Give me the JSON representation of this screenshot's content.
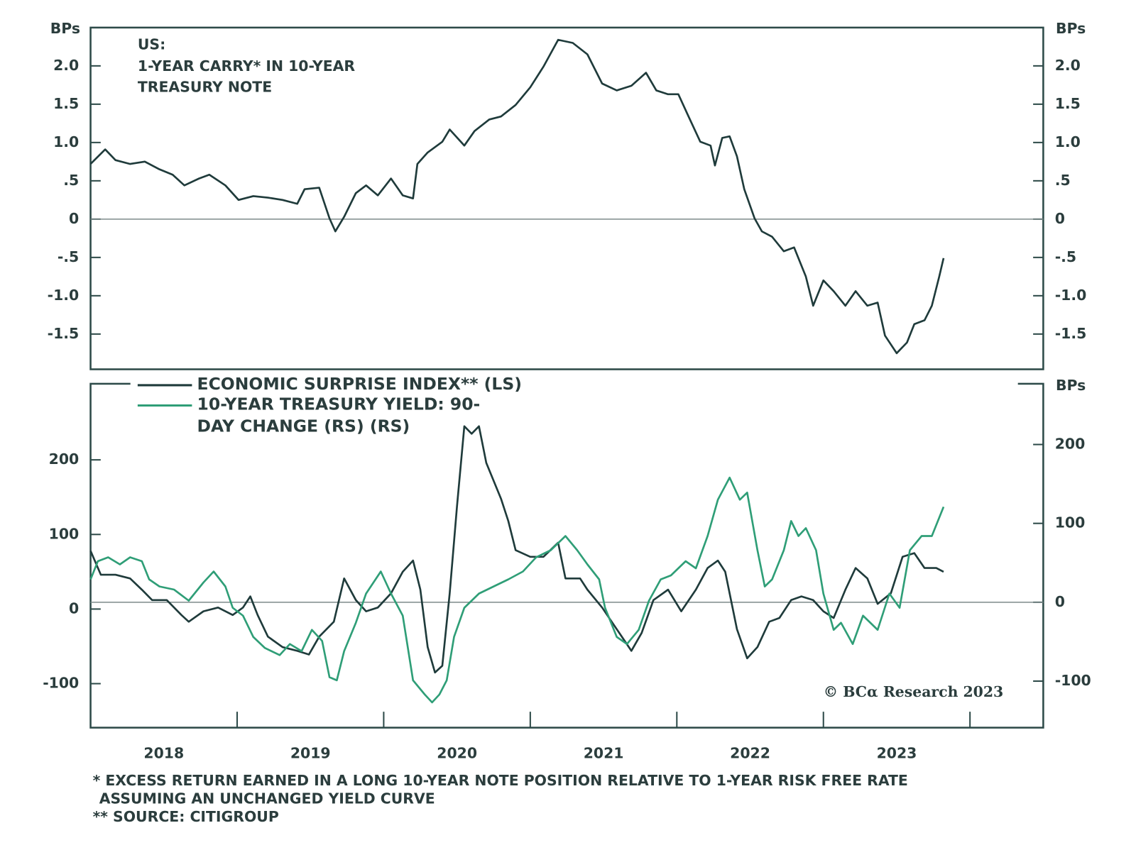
{
  "chart_data": [
    {
      "type": "line",
      "title_lines": [
        "US:",
        "1-YEAR CARRY* IN 10-YEAR",
        "TREASURY NOTE"
      ],
      "y_label": "BPs",
      "xlim": [
        2018,
        2024.5
      ],
      "ylim": [
        -1.96,
        2.5
      ],
      "yticks": [
        {
          "value": 2,
          "label": "2.0"
        },
        1.5,
        {
          "value": 1,
          "label": "1.0"
        },
        {
          "value": 0.5,
          "label": ".5"
        },
        0,
        {
          "value": -0.5,
          "label": "-.5"
        },
        {
          "value": -1,
          "label": "-1.0"
        },
        -1.5
      ],
      "mirror_ticks": true,
      "zero_line": true,
      "series": [
        {
          "color": "#1f3b3b",
          "x": [
            2018,
            2018.1,
            2018.17,
            2018.27,
            2018.37,
            2018.47,
            2018.56,
            2018.64,
            2018.74,
            2018.81,
            2018.92,
            2019.01,
            2019.11,
            2019.21,
            2019.31,
            2019.41,
            2019.46,
            2019.56,
            2019.63,
            2019.67,
            2019.73,
            2019.81,
            2019.88,
            2019.96,
            2020.05,
            2020.13,
            2020.2,
            2020.23,
            2020.3,
            2020.4,
            2020.45,
            2020.55,
            2020.62,
            2020.72,
            2020.8,
            2020.9,
            2021,
            2021.09,
            2021.19,
            2021.29,
            2021.39,
            2021.49,
            2021.59,
            2021.69,
            2021.79,
            2021.86,
            2021.94,
            2022.01,
            2022.08,
            2022.16,
            2022.23,
            2022.26,
            2022.31,
            2022.36,
            2022.41,
            2022.46,
            2022.53,
            2022.58,
            2022.65,
            2022.73,
            2022.8,
            2022.88,
            2022.93,
            2023,
            2023.07,
            2023.15,
            2023.22,
            2023.3,
            2023.37,
            2023.42,
            2023.5,
            2023.57,
            2023.62,
            2023.69,
            2023.74,
            2023.79,
            2023.82
          ],
          "values": [
            0.72,
            0.91,
            0.77,
            0.72,
            0.75,
            0.65,
            0.58,
            0.44,
            0.53,
            0.58,
            0.44,
            0.25,
            0.3,
            0.28,
            0.25,
            0.2,
            0.39,
            0.41,
            0.01,
            -0.16,
            0.03,
            0.34,
            0.44,
            0.31,
            0.53,
            0.31,
            0.27,
            0.72,
            0.87,
            1.01,
            1.17,
            0.96,
            1.15,
            1.3,
            1.34,
            1.49,
            1.72,
            1.99,
            2.34,
            2.3,
            2.15,
            1.77,
            1.68,
            1.74,
            1.91,
            1.68,
            1.63,
            1.63,
            1.34,
            1.01,
            0.96,
            0.7,
            1.06,
            1.08,
            0.82,
            0.39,
            0.01,
            -0.16,
            -0.23,
            -0.42,
            -0.37,
            -0.75,
            -1.13,
            -0.8,
            -0.94,
            -1.13,
            -0.94,
            -1.13,
            -1.09,
            -1.52,
            -1.75,
            -1.61,
            -1.37,
            -1.32,
            -1.13,
            -0.75,
            -0.51
          ]
        }
      ]
    },
    {
      "type": "line",
      "y2_label": "BPs",
      "xlim": [
        2018,
        2024.5
      ],
      "ylim": [
        -159,
        302
      ],
      "yticks": [
        200,
        100,
        0,
        -100
      ],
      "y2lim": [
        -159,
        277
      ],
      "y2ticks": [
        200,
        100,
        0,
        -100
      ],
      "zero_line": true,
      "x_tick_marks": [
        2019,
        2020,
        2021,
        2022,
        2023,
        2024
      ],
      "xticks": [
        {
          "value": 2018.5,
          "label": "2018"
        },
        {
          "value": 2019.5,
          "label": "2019"
        },
        {
          "value": 2020.5,
          "label": "2020"
        },
        {
          "value": 2021.5,
          "label": "2021"
        },
        {
          "value": 2022.5,
          "label": "2022"
        },
        {
          "value": 2023.5,
          "label": "2023"
        }
      ],
      "series": [
        {
          "name": "ECONOMIC SURPRISE INDEX** (LS)",
          "color": "#1f3b3b",
          "x": [
            2018,
            2018.07,
            2018.17,
            2018.27,
            2018.35,
            2018.42,
            2018.52,
            2018.62,
            2018.67,
            2018.77,
            2018.87,
            2018.97,
            2019.04,
            2019.09,
            2019.14,
            2019.21,
            2019.31,
            2019.41,
            2019.49,
            2019.56,
            2019.66,
            2019.73,
            2019.81,
            2019.88,
            2019.96,
            2020.05,
            2020.13,
            2020.2,
            2020.25,
            2020.3,
            2020.35,
            2020.4,
            2020.45,
            2020.5,
            2020.55,
            2020.6,
            2020.65,
            2020.7,
            2020.8,
            2020.85,
            2020.9,
            2021,
            2021.09,
            2021.19,
            2021.24,
            2021.34,
            2021.39,
            2021.49,
            2021.59,
            2021.69,
            2021.76,
            2021.84,
            2021.94,
            2022.03,
            2022.13,
            2022.21,
            2022.28,
            2022.33,
            2022.41,
            2022.48,
            2022.55,
            2022.63,
            2022.7,
            2022.78,
            2022.85,
            2022.93,
            2023,
            2023.07,
            2023.15,
            2023.22,
            2023.3,
            2023.37,
            2023.46,
            2023.54,
            2023.62,
            2023.69,
            2023.77,
            2023.82
          ],
          "values": [
            78,
            46,
            46,
            41,
            26,
            12,
            12,
            -8,
            -17,
            -3,
            2,
            -8,
            2,
            17,
            -8,
            -37,
            -51,
            -56,
            -61,
            -37,
            -17,
            41,
            12,
            -3,
            2,
            21,
            50,
            65,
            26,
            -51,
            -85,
            -76,
            21,
            138,
            245,
            235,
            245,
            196,
            148,
            118,
            79,
            70,
            70,
            89,
            41,
            41,
            26,
            2,
            -27,
            -56,
            -32,
            12,
            26,
            -3,
            26,
            55,
            65,
            50,
            -27,
            -66,
            -51,
            -17,
            -12,
            12,
            17,
            12,
            -3,
            -12,
            26,
            55,
            41,
            7,
            21,
            70,
            75,
            55,
            55,
            50
          ]
        },
        {
          "name": "10-YEAR TREASURY YIELD: 90-DAY CHANGE (RS) (RS)",
          "color": "#2f9e77",
          "axis": "y2",
          "x": [
            2018,
            2018.05,
            2018.12,
            2018.2,
            2018.27,
            2018.35,
            2018.4,
            2018.47,
            2018.57,
            2018.67,
            2018.77,
            2018.84,
            2018.92,
            2018.97,
            2019.04,
            2019.11,
            2019.19,
            2019.29,
            2019.36,
            2019.44,
            2019.51,
            2019.58,
            2019.63,
            2019.68,
            2019.73,
            2019.81,
            2019.88,
            2019.98,
            2020.05,
            2020.13,
            2020.2,
            2020.28,
            2020.33,
            2020.38,
            2020.43,
            2020.48,
            2020.55,
            2020.65,
            2020.75,
            2020.85,
            2020.95,
            2021.04,
            2021.14,
            2021.24,
            2021.32,
            2021.39,
            2021.47,
            2021.51,
            2021.59,
            2021.66,
            2021.74,
            2021.81,
            2021.89,
            2021.96,
            2022.06,
            2022.13,
            2022.21,
            2022.28,
            2022.36,
            2022.43,
            2022.48,
            2022.55,
            2022.6,
            2022.65,
            2022.73,
            2022.78,
            2022.83,
            2022.88,
            2022.95,
            2023,
            2023.07,
            2023.12,
            2023.2,
            2023.27,
            2023.37,
            2023.45,
            2023.52,
            2023.59,
            2023.67,
            2023.74,
            2023.82
          ],
          "values": [
            29,
            52,
            57,
            48,
            57,
            52,
            29,
            20,
            16,
            2,
            25,
            39,
            20,
            -7,
            -17,
            -44,
            -58,
            -67,
            -53,
            -62,
            -35,
            -49,
            -95,
            -99,
            -62,
            -26,
            11,
            39,
            11,
            -17,
            -99,
            -117,
            -127,
            -117,
            -99,
            -44,
            -7,
            11,
            20,
            29,
            39,
            57,
            66,
            84,
            66,
            48,
            29,
            -7,
            -44,
            -53,
            -35,
            2,
            29,
            34,
            52,
            43,
            84,
            130,
            158,
            130,
            139,
            66,
            20,
            29,
            66,
            103,
            84,
            94,
            66,
            11,
            -35,
            -26,
            -53,
            -17,
            -35,
            11,
            -7,
            66,
            84,
            84,
            121
          ]
        }
      ]
    }
  ],
  "source_mark": "© BCα Research 2023",
  "footnotes": [
    "*  EXCESS RETURN EARNED IN A LONG 10-YEAR NOTE POSITION RELATIVE TO 1-YEAR RISK FREE RATE",
    "ASSUMING AN UNCHANGED YIELD CURVE",
    "** SOURCE: CITIGROUP"
  ]
}
